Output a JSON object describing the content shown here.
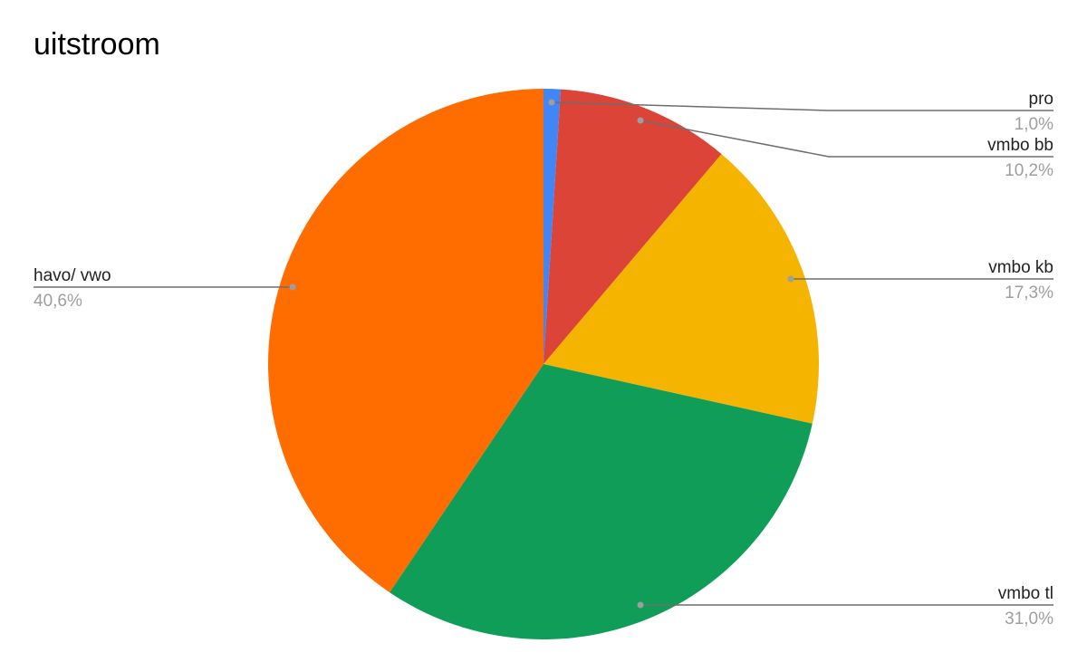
{
  "chart_data": {
    "type": "pie",
    "title": "uitstroom",
    "slices": [
      {
        "label": "pro",
        "value": 1.0,
        "display": "1,0%",
        "color": "#4285f4"
      },
      {
        "label": "vmbo bb",
        "value": 10.2,
        "display": "10,2%",
        "color": "#db4437"
      },
      {
        "label": "vmbo kb",
        "value": 17.3,
        "display": "17,3%",
        "color": "#f4b400"
      },
      {
        "label": "vmbo tl",
        "value": 31.0,
        "display": "31,0%",
        "color": "#0f9d58"
      },
      {
        "label": "havo/ vwo",
        "value": 40.6,
        "display": "40,6%",
        "color": "#ff6d00"
      }
    ],
    "start_angle": "top",
    "direction": "clockwise",
    "legend": "labels-with-leader-lines"
  }
}
